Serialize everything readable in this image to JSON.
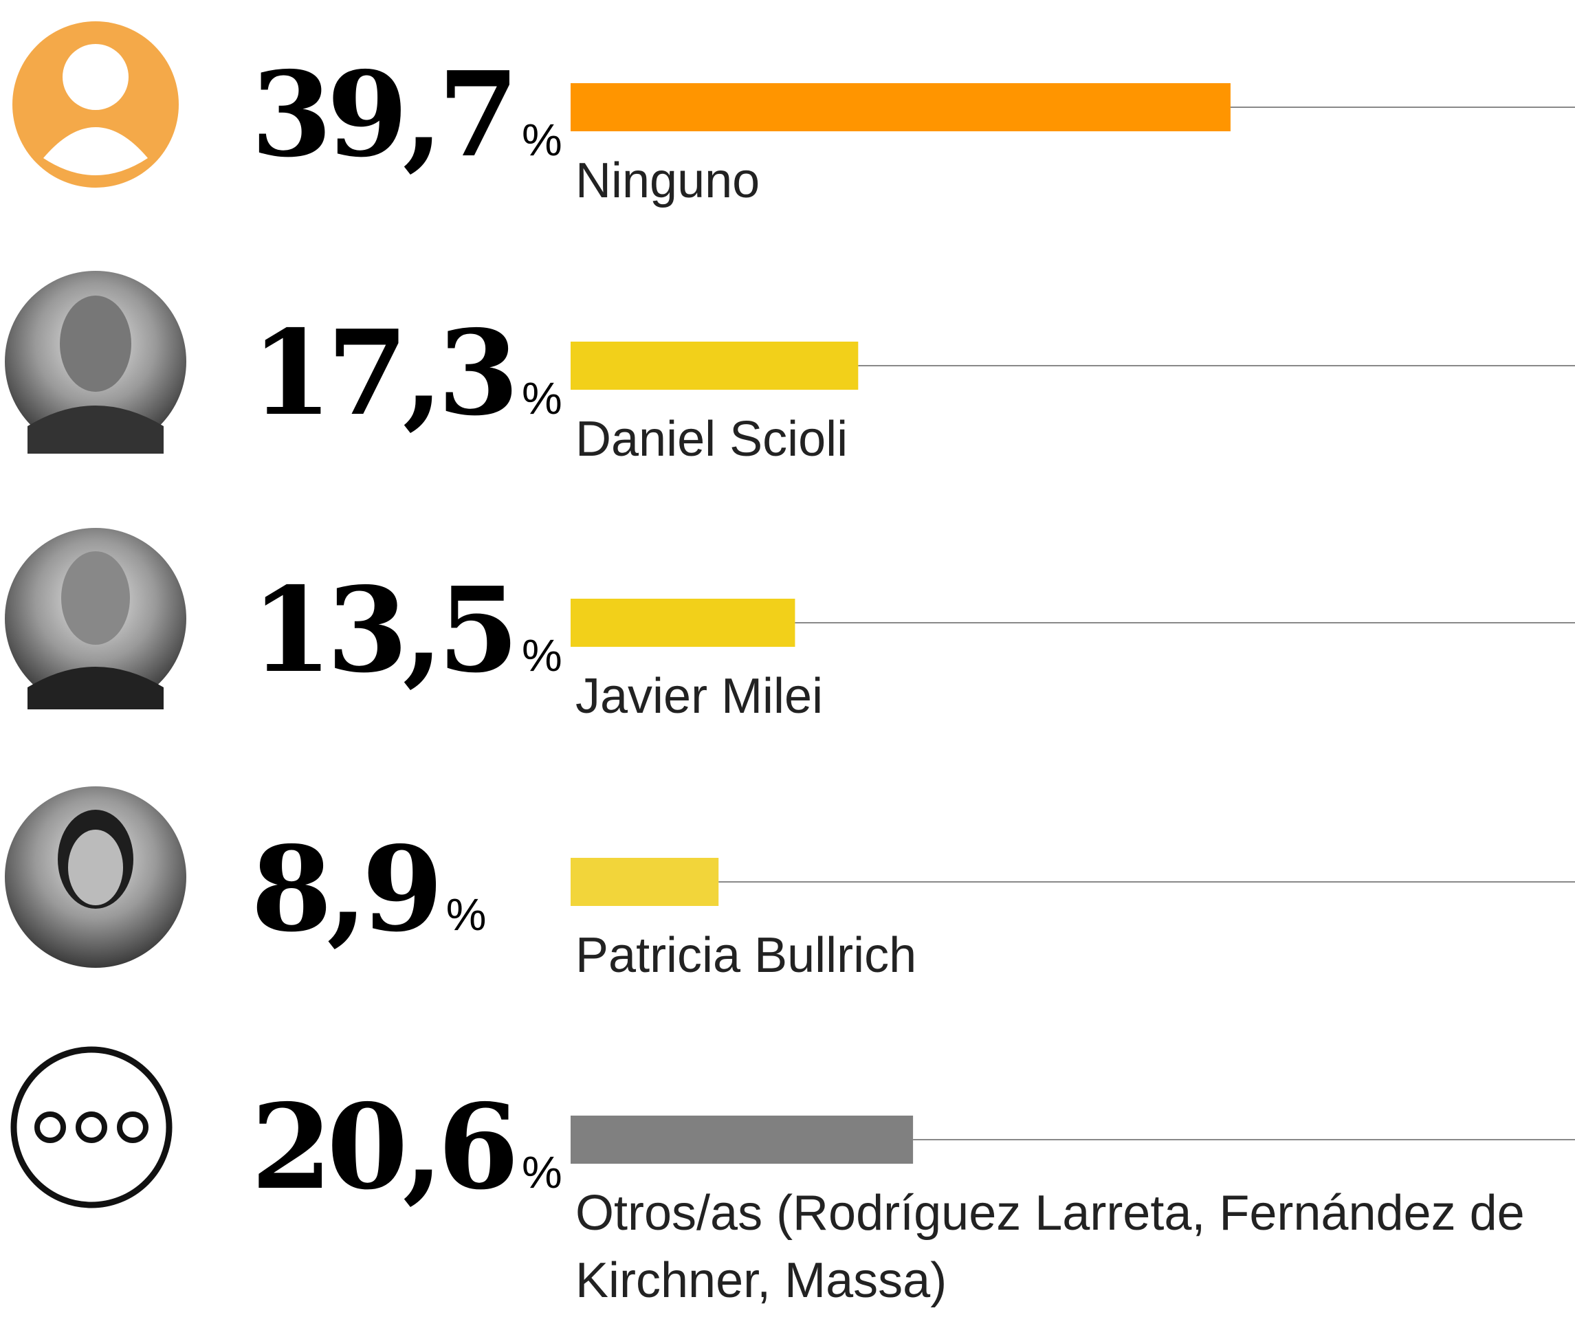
{
  "chart_data": {
    "type": "bar",
    "orientation": "horizontal",
    "categories": [
      "Ninguno",
      "Daniel Scioli",
      "Javier Milei",
      "Patricia Bullrich",
      "Otros/as (Rodríguez Larreta, Fernández de Kirchner, Massa)"
    ],
    "values": [
      39.7,
      17.3,
      13.5,
      8.9,
      20.6
    ],
    "value_labels": [
      "39,7%",
      "17,3%",
      "13,5%",
      "8,9%",
      "20,6%"
    ],
    "colors": [
      "#ff9500",
      "#f2d01a",
      "#f2d01a",
      "#f2d53a",
      "#808080"
    ]
  }
}
